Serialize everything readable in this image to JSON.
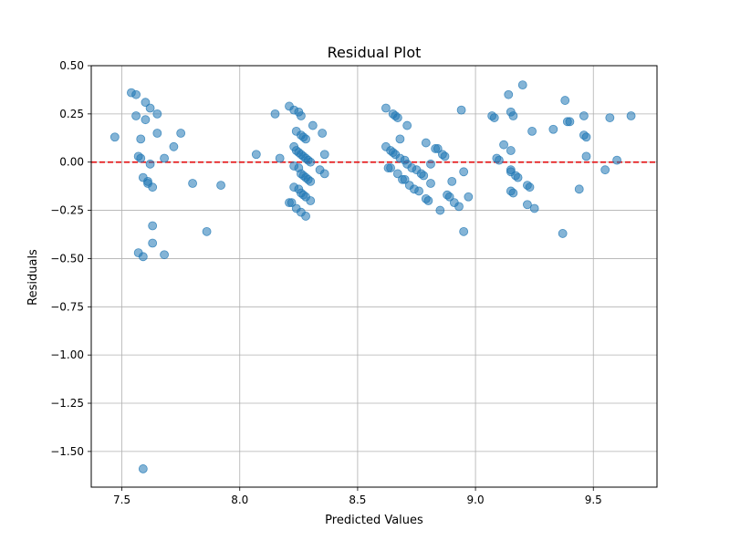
{
  "chart_data": {
    "type": "scatter",
    "title": "Residual Plot",
    "xlabel": "Predicted Values",
    "ylabel": "Residuals",
    "xlim": [
      7.37,
      9.77
    ],
    "ylim": [
      -1.685,
      0.5
    ],
    "xticks": [
      7.5,
      8.0,
      8.5,
      9.0,
      9.5
    ],
    "xtick_labels": [
      "7.5",
      "8.0",
      "8.5",
      "9.0",
      "9.5"
    ],
    "yticks": [
      0.5,
      0.25,
      0.0,
      -0.25,
      -0.5,
      -0.75,
      -1.0,
      -1.25,
      -1.5
    ],
    "ytick_labels": [
      "0.50",
      "0.25",
      "0.00",
      "−0.25",
      "−0.50",
      "−0.75",
      "−1.00",
      "−1.25",
      "−1.50"
    ],
    "grid": true,
    "reference_line": {
      "y": 0.0,
      "style": "dashed",
      "color": "#e41a1c"
    },
    "marker_color": "#1f77b4",
    "points": [
      [
        7.47,
        0.13
      ],
      [
        7.54,
        0.36
      ],
      [
        7.56,
        0.35
      ],
      [
        7.56,
        0.24
      ],
      [
        7.57,
        0.03
      ],
      [
        7.58,
        0.02
      ],
      [
        7.58,
        0.12
      ],
      [
        7.59,
        -0.08
      ],
      [
        7.6,
        0.31
      ],
      [
        7.6,
        0.22
      ],
      [
        7.61,
        -0.1
      ],
      [
        7.61,
        -0.11
      ],
      [
        7.62,
        0.28
      ],
      [
        7.62,
        -0.01
      ],
      [
        7.63,
        -0.13
      ],
      [
        7.63,
        -0.33
      ],
      [
        7.63,
        -0.42
      ],
      [
        7.65,
        0.25
      ],
      [
        7.65,
        0.15
      ],
      [
        7.57,
        -0.47
      ],
      [
        7.59,
        -0.49
      ],
      [
        7.68,
        -0.48
      ],
      [
        7.68,
        0.02
      ],
      [
        7.72,
        0.08
      ],
      [
        7.75,
        0.15
      ],
      [
        7.8,
        -0.11
      ],
      [
        7.86,
        -0.36
      ],
      [
        7.92,
        -0.12
      ],
      [
        7.59,
        -1.59
      ],
      [
        8.07,
        0.04
      ],
      [
        8.15,
        0.25
      ],
      [
        8.17,
        0.02
      ],
      [
        8.21,
        0.29
      ],
      [
        8.21,
        -0.21
      ],
      [
        8.22,
        -0.21
      ],
      [
        8.23,
        0.27
      ],
      [
        8.23,
        0.08
      ],
      [
        8.23,
        -0.02
      ],
      [
        8.23,
        -0.13
      ],
      [
        8.24,
        0.16
      ],
      [
        8.24,
        -0.24
      ],
      [
        8.24,
        0.06
      ],
      [
        8.25,
        0.26
      ],
      [
        8.25,
        -0.03
      ],
      [
        8.25,
        -0.14
      ],
      [
        8.25,
        0.05
      ],
      [
        8.26,
        0.24
      ],
      [
        8.26,
        0.14
      ],
      [
        8.26,
        0.04
      ],
      [
        8.26,
        -0.06
      ],
      [
        8.26,
        -0.16
      ],
      [
        8.26,
        -0.26
      ],
      [
        8.27,
        0.13
      ],
      [
        8.27,
        0.03
      ],
      [
        8.27,
        -0.07
      ],
      [
        8.27,
        -0.17
      ],
      [
        8.28,
        0.12
      ],
      [
        8.28,
        0.02
      ],
      [
        8.28,
        -0.08
      ],
      [
        8.28,
        -0.18
      ],
      [
        8.28,
        -0.28
      ],
      [
        8.29,
        0.01
      ],
      [
        8.29,
        -0.09
      ],
      [
        8.3,
        -0.2
      ],
      [
        8.3,
        0.0
      ],
      [
        8.3,
        -0.1
      ],
      [
        8.31,
        0.19
      ],
      [
        8.34,
        -0.04
      ],
      [
        8.35,
        0.15
      ],
      [
        8.36,
        -0.06
      ],
      [
        8.36,
        0.04
      ],
      [
        8.62,
        0.28
      ],
      [
        8.62,
        0.08
      ],
      [
        8.63,
        -0.03
      ],
      [
        8.64,
        0.06
      ],
      [
        8.64,
        -0.03
      ],
      [
        8.65,
        0.25
      ],
      [
        8.65,
        0.05
      ],
      [
        8.66,
        0.24
      ],
      [
        8.66,
        0.04
      ],
      [
        8.67,
        0.23
      ],
      [
        8.67,
        -0.06
      ],
      [
        8.68,
        0.12
      ],
      [
        8.68,
        0.02
      ],
      [
        8.69,
        -0.09
      ],
      [
        8.7,
        0.01
      ],
      [
        8.7,
        -0.09
      ],
      [
        8.71,
        0.19
      ],
      [
        8.71,
        -0.01
      ],
      [
        8.72,
        -0.12
      ],
      [
        8.73,
        -0.03
      ],
      [
        8.74,
        -0.14
      ],
      [
        8.75,
        -0.04
      ],
      [
        8.76,
        -0.15
      ],
      [
        8.77,
        -0.06
      ],
      [
        8.78,
        -0.07
      ],
      [
        8.79,
        0.1
      ],
      [
        8.79,
        -0.19
      ],
      [
        8.8,
        -0.2
      ],
      [
        8.81,
        -0.11
      ],
      [
        8.81,
        -0.01
      ],
      [
        8.83,
        0.07
      ],
      [
        8.84,
        0.07
      ],
      [
        8.85,
        -0.25
      ],
      [
        8.86,
        0.04
      ],
      [
        8.87,
        0.03
      ],
      [
        8.88,
        -0.17
      ],
      [
        8.89,
        -0.18
      ],
      [
        8.9,
        -0.1
      ],
      [
        8.91,
        -0.21
      ],
      [
        8.93,
        -0.23
      ],
      [
        8.94,
        0.27
      ],
      [
        8.95,
        -0.05
      ],
      [
        8.95,
        -0.36
      ],
      [
        8.97,
        -0.18
      ],
      [
        9.07,
        0.24
      ],
      [
        9.08,
        0.23
      ],
      [
        9.09,
        0.02
      ],
      [
        9.1,
        0.01
      ],
      [
        9.12,
        0.09
      ],
      [
        9.14,
        0.35
      ],
      [
        9.15,
        0.26
      ],
      [
        9.15,
        -0.04
      ],
      [
        9.15,
        -0.05
      ],
      [
        9.15,
        0.06
      ],
      [
        9.15,
        -0.15
      ],
      [
        9.16,
        0.24
      ],
      [
        9.16,
        -0.16
      ],
      [
        9.17,
        -0.07
      ],
      [
        9.18,
        -0.08
      ],
      [
        9.2,
        0.4
      ],
      [
        9.22,
        -0.22
      ],
      [
        9.22,
        -0.12
      ],
      [
        9.23,
        -0.13
      ],
      [
        9.24,
        0.16
      ],
      [
        9.25,
        -0.24
      ],
      [
        9.33,
        0.17
      ],
      [
        9.37,
        -0.37
      ],
      [
        9.38,
        0.32
      ],
      [
        9.39,
        0.21
      ],
      [
        9.4,
        0.21
      ],
      [
        9.44,
        -0.14
      ],
      [
        9.46,
        0.24
      ],
      [
        9.46,
        0.14
      ],
      [
        9.47,
        0.13
      ],
      [
        9.47,
        0.03
      ],
      [
        9.55,
        -0.04
      ],
      [
        9.57,
        0.23
      ],
      [
        9.6,
        0.01
      ],
      [
        9.66,
        0.24
      ]
    ]
  }
}
